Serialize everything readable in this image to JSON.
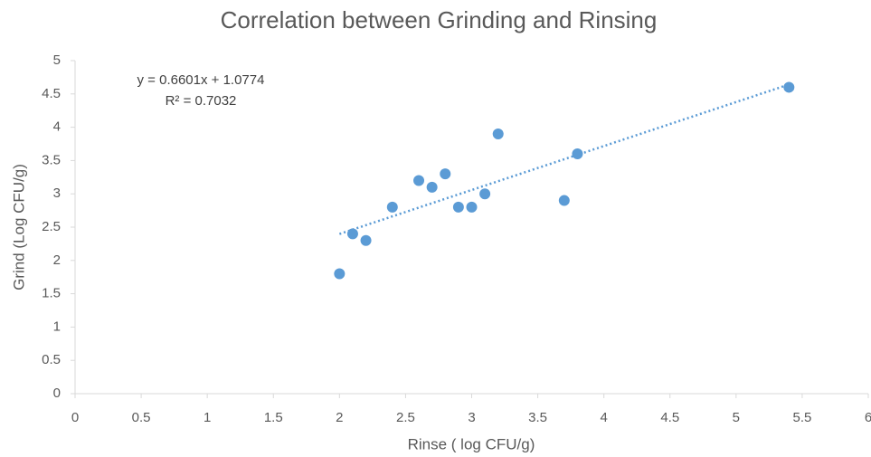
{
  "chart_data": {
    "type": "scatter",
    "title": "Correlation between Grinding and Rinsing",
    "x_label": "Rinse ( log CFU/g)",
    "y_label": "Grind (Log CFU/g)",
    "series": [
      {
        "name": "Grind",
        "color": "#5b9bd5",
        "x": [
          2.0,
          2.1,
          2.2,
          2.4,
          2.6,
          2.7,
          2.8,
          2.9,
          3.0,
          3.1,
          3.2,
          3.7,
          3.8,
          5.4
        ],
        "values": [
          1.8,
          2.4,
          2.3,
          2.8,
          3.2,
          3.1,
          3.3,
          2.8,
          2.8,
          3.0,
          3.9,
          2.9,
          3.6,
          4.6
        ]
      }
    ],
    "trendline": {
      "slope": 0.6601,
      "intercept": 1.0774,
      "equation": "y = 0.6601x + 1.0774",
      "r2": "R² = 0.7032",
      "color": "#5b9bd5"
    },
    "xlim": [
      0,
      6
    ],
    "xticks": [
      0,
      0.5,
      1,
      1.5,
      2,
      2.5,
      3,
      3.5,
      4,
      4.5,
      5,
      5.5,
      6
    ],
    "ylim": [
      0,
      5
    ],
    "yticks": [
      0,
      0.5,
      1,
      1.5,
      2,
      2.5,
      3,
      3.5,
      4,
      4.5,
      5
    ],
    "grid": false
  }
}
